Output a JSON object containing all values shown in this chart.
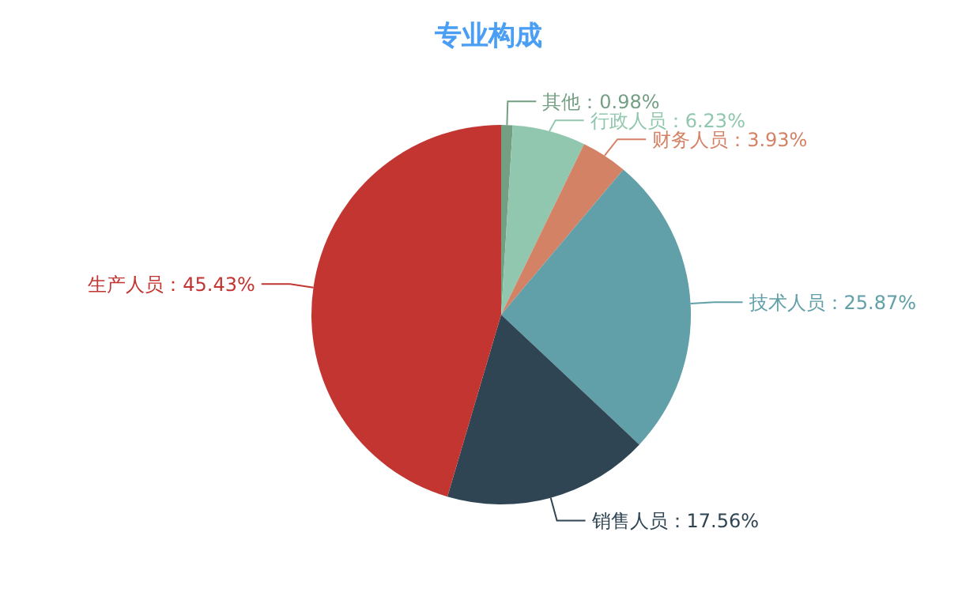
{
  "chart_data": {
    "type": "pie",
    "title": "专业构成",
    "categories": [
      "其他",
      "行政人员",
      "财务人员",
      "技术人员",
      "销售人员",
      "生产人员"
    ],
    "values": [
      0.98,
      6.23,
      3.93,
      25.87,
      17.56,
      45.43
    ],
    "colors": [
      "#749f83",
      "#91c7ae",
      "#d48265",
      "#61a0a8",
      "#2f4554",
      "#c23531"
    ],
    "value_labels": [
      "：0.98%",
      "：6.23%",
      "：3.93%",
      "：25.87%",
      "：17.56%",
      "：45.43%"
    ]
  }
}
